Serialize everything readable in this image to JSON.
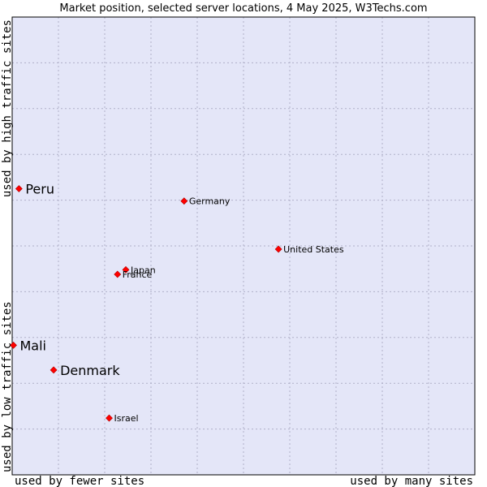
{
  "colors": {
    "plot_bg": "#e4e6f8",
    "plot_border": "#000000",
    "grid": "#b0b0c8",
    "marker": "#ff0000"
  },
  "chart_data": {
    "type": "scatter",
    "title": "Market position, selected server locations, 4 May 2025, W3Techs.com",
    "xlabel_left": "used by fewer sites",
    "xlabel_right": "used by many sites",
    "ylabel_bottom": "used by low traffic sites",
    "ylabel_top": "used by high traffic sites",
    "xlim": [
      0,
      10
    ],
    "ylim": [
      0,
      10
    ],
    "grid": true,
    "points": [
      {
        "label": "Peru",
        "x": 0.12,
        "y": 6.25,
        "emphasis": true
      },
      {
        "label": "Germany",
        "x": 3.69,
        "y": 5.98,
        "emphasis": false
      },
      {
        "label": "United States",
        "x": 5.73,
        "y": 4.93,
        "emphasis": false
      },
      {
        "label": "Japan",
        "x": 2.43,
        "y": 4.48,
        "emphasis": false
      },
      {
        "label": "France",
        "x": 2.25,
        "y": 4.38,
        "emphasis": false
      },
      {
        "label": "Mali",
        "x": 0.0,
        "y": 2.83,
        "emphasis": true
      },
      {
        "label": "Denmark",
        "x": 0.87,
        "y": 2.29,
        "emphasis": true
      },
      {
        "label": "Israel",
        "x": 2.07,
        "y": 1.24,
        "emphasis": false
      }
    ]
  }
}
